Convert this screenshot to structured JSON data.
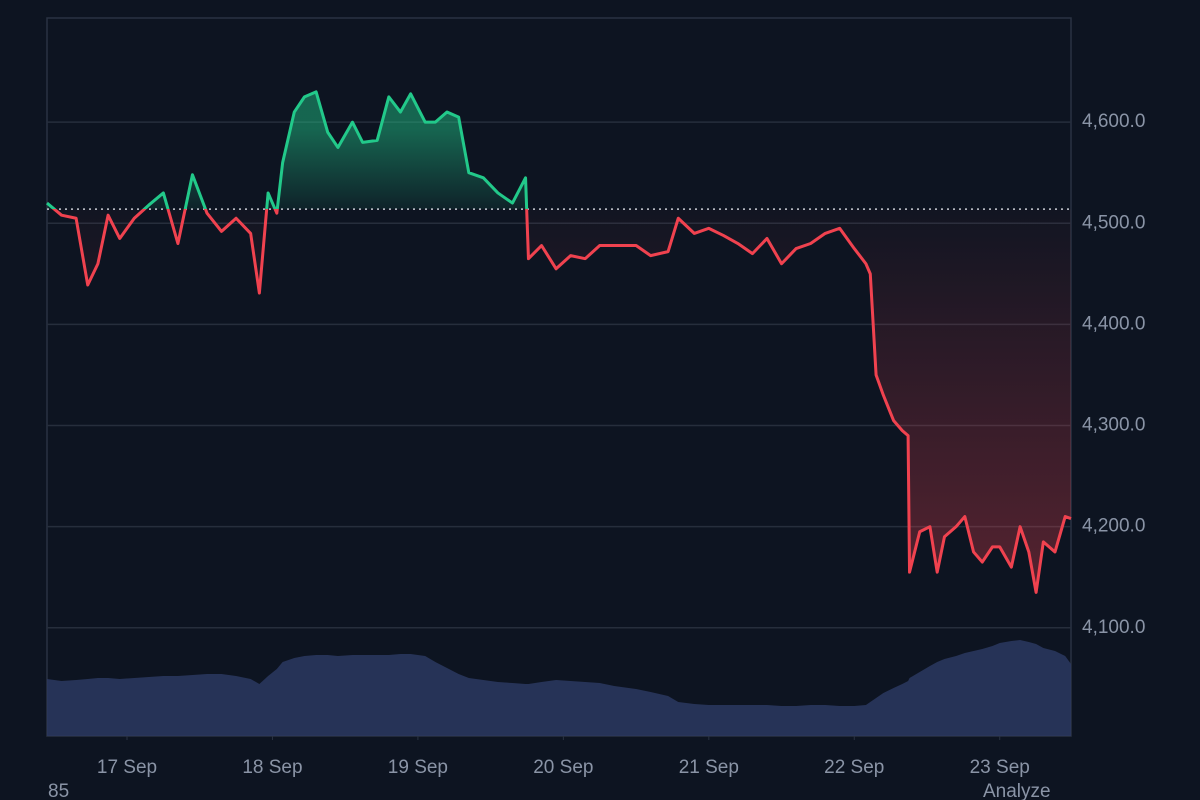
{
  "chart_data": {
    "type": "baseline",
    "x": [
      16.45,
      16.55,
      16.65,
      16.73,
      16.8,
      16.87,
      16.95,
      17.05,
      17.15,
      17.25,
      17.35,
      17.45,
      17.55,
      17.65,
      17.75,
      17.85,
      17.91,
      17.97,
      18.03,
      18.07,
      18.15,
      18.22,
      18.3,
      18.38,
      18.45,
      18.55,
      18.62,
      18.72,
      18.8,
      18.88,
      18.95,
      19.05,
      19.12,
      19.2,
      19.28,
      19.35,
      19.45,
      19.55,
      19.65,
      19.74,
      19.76,
      19.85,
      19.95,
      20.05,
      20.15,
      20.25,
      20.35,
      20.5,
      20.6,
      20.72,
      20.79,
      20.9,
      21.0,
      21.1,
      21.2,
      21.3,
      21.4,
      21.5,
      21.6,
      21.7,
      21.8,
      21.9,
      22.0,
      22.08,
      22.11,
      22.15,
      22.2,
      22.27,
      22.33,
      22.37,
      22.38,
      22.45,
      22.52,
      22.57,
      22.62,
      22.7,
      22.76,
      22.82,
      22.88,
      22.95,
      23.0,
      23.08,
      23.14,
      23.2,
      23.25,
      23.3,
      23.38,
      23.45,
      23.49
    ],
    "values": [
      4520,
      4508,
      4505,
      4439,
      4460,
      4508,
      4485,
      4505,
      4518,
      4530,
      4480,
      4548,
      4510,
      4492,
      4505,
      4490,
      4431,
      4530,
      4510,
      4560,
      4610,
      4625,
      4630,
      4590,
      4575,
      4600,
      4580,
      4582,
      4625,
      4610,
      4628,
      4600,
      4600,
      4610,
      4605,
      4550,
      4545,
      4530,
      4520,
      4545,
      4465,
      4478,
      4455,
      4468,
      4465,
      4478,
      4478,
      4478,
      4468,
      4472,
      4505,
      4490,
      4495,
      4488,
      4480,
      4470,
      4485,
      4460,
      4475,
      4480,
      4490,
      4495,
      4475,
      4460,
      4450,
      4350,
      4330,
      4305,
      4295,
      4290,
      4155,
      4195,
      4200,
      4155,
      4190,
      4200,
      4210,
      4175,
      4165,
      4180,
      4180,
      4160,
      4200,
      4175,
      4135,
      4185,
      4175,
      4210,
      4208
    ],
    "volume": {
      "color": "#2b3860",
      "values": [
        57,
        55,
        56,
        57,
        58,
        58,
        57,
        58,
        59,
        60,
        60,
        61,
        62,
        62,
        60,
        57,
        52,
        60,
        67,
        74,
        78,
        80,
        81,
        81,
        80,
        81,
        81,
        81,
        81,
        82,
        82,
        80,
        74,
        68,
        62,
        58,
        56,
        54,
        53,
        52,
        52,
        54,
        56,
        55,
        54,
        53,
        50,
        47,
        44,
        40,
        34,
        32,
        31,
        31,
        31,
        31,
        31,
        30,
        30,
        31,
        31,
        30,
        30,
        31,
        34,
        38,
        43,
        48,
        52,
        55,
        58,
        64,
        70,
        74,
        77,
        80,
        83,
        85,
        87,
        90,
        93,
        95,
        96,
        94,
        92,
        88,
        85,
        80,
        72
      ]
    },
    "volume_lim": [
      0,
      100
    ],
    "baseline": 4514,
    "color_above": "#22c98a",
    "color_below": "#f0424f",
    "xlim": [
      16.45,
      23.49
    ],
    "ylim": [
      3993,
      4703
    ],
    "xticks": [
      {
        "value": 17,
        "label": "17 Sep"
      },
      {
        "value": 18,
        "label": "18 Sep"
      },
      {
        "value": 19,
        "label": "19 Sep"
      },
      {
        "value": 20,
        "label": "20 Sep"
      },
      {
        "value": 21,
        "label": "21 Sep"
      },
      {
        "value": 22,
        "label": "22 Sep"
      },
      {
        "value": 23,
        "label": "23 Sep"
      }
    ],
    "yticks": [
      {
        "value": 4100,
        "label": "4,100.0"
      },
      {
        "value": 4200,
        "label": "4,200.0"
      },
      {
        "value": 4300,
        "label": "4,300.0"
      },
      {
        "value": 4400,
        "label": "4,400.0"
      },
      {
        "value": 4500,
        "label": "4,500.0"
      },
      {
        "value": 4600,
        "label": "4,600.0"
      }
    ],
    "grid": true
  },
  "footer_left": "85",
  "footer_right": "Analyze"
}
